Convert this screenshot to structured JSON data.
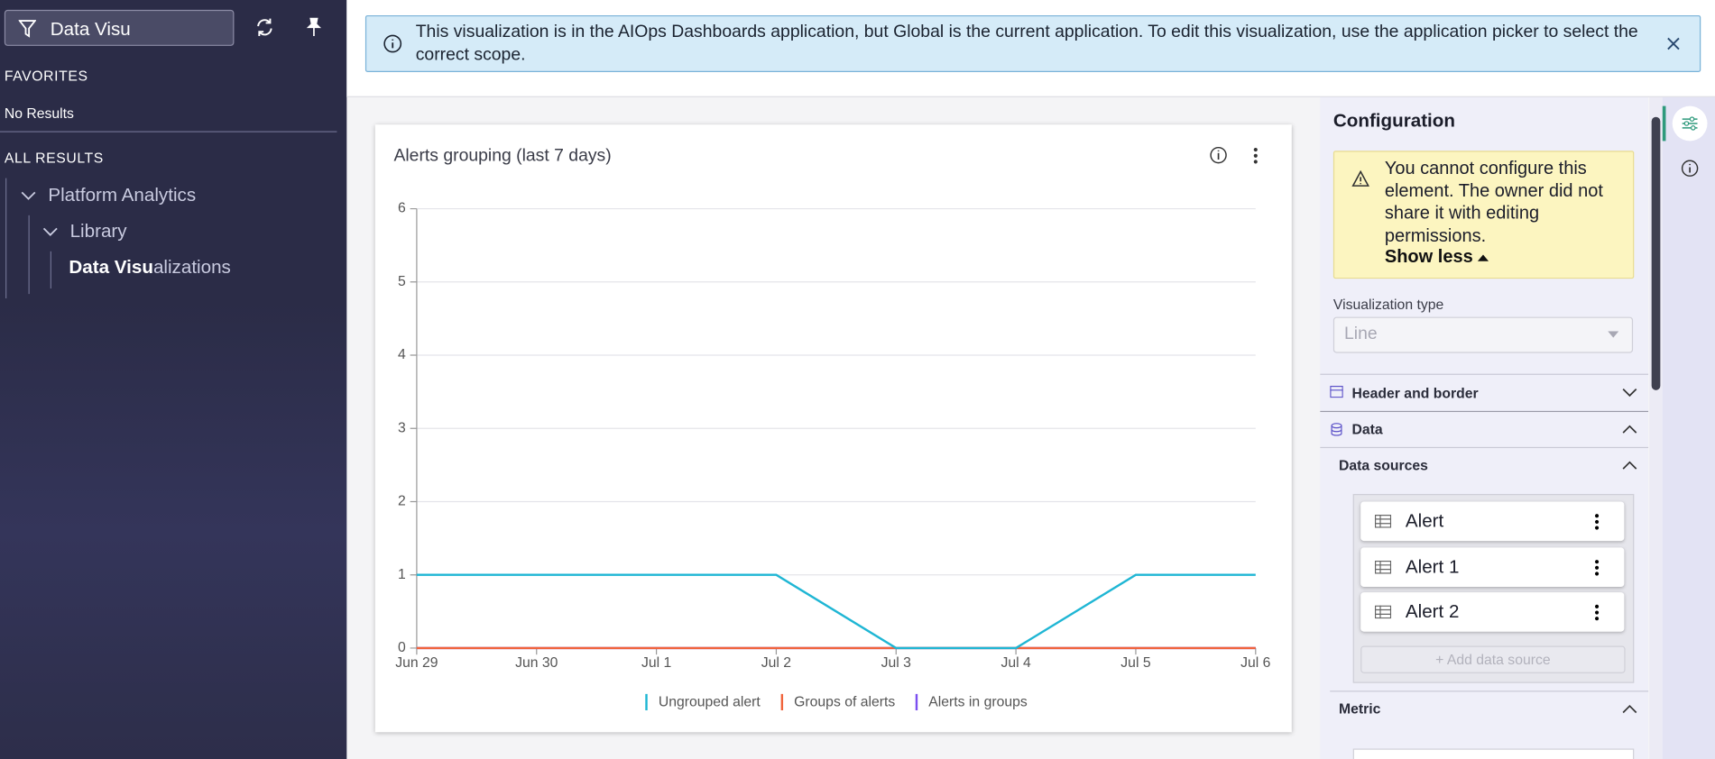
{
  "sidebar": {
    "search": "Data Visu",
    "favorites_heading": "FAVORITES",
    "favorites_empty": "No Results",
    "all_results_heading": "ALL RESULTS",
    "tree": [
      {
        "label": "Platform Analytics"
      },
      {
        "label": "Library"
      },
      {
        "label_match": "Data Visu",
        "label_rest": "alizations"
      }
    ]
  },
  "banner": {
    "text": "This visualization is in the AIOps Dashboards application, but Global is the current application. To edit this visualization, use the application picker to select the correct scope."
  },
  "chart_data": {
    "type": "line",
    "title": "Alerts grouping (last 7 days)",
    "categories": [
      "Jun 29",
      "Jun 30",
      "Jul 1",
      "Jul 2",
      "Jul 3",
      "Jul 4",
      "Jul 5",
      "Jul 6"
    ],
    "series": [
      {
        "name": "Ungrouped alert",
        "color": "#1fb6d4",
        "values": [
          1,
          1,
          1,
          1,
          0,
          0,
          1,
          1
        ]
      },
      {
        "name": "Groups of alerts",
        "color": "#f0643c",
        "values": [
          0,
          0,
          0,
          0,
          0,
          0,
          0,
          0
        ]
      },
      {
        "name": "Alerts in groups",
        "color": "#7b4ff0",
        "values": [
          0,
          0,
          0,
          0,
          0,
          0,
          0,
          0
        ]
      }
    ],
    "ylim": [
      0,
      6
    ],
    "yticks": [
      0,
      1,
      2,
      3,
      4,
      5,
      6
    ],
    "grid": true
  },
  "config": {
    "title": "Configuration",
    "warning": "You cannot configure this element. The owner did not share it with editing permissions.",
    "show_less": "Show less",
    "viz_type_label": "Visualization type",
    "viz_type_value": "Line",
    "sections": [
      "Header and border",
      "Data"
    ],
    "data_sources_label": "Data sources",
    "data_sources": [
      "Alert",
      "Alert 1",
      "Alert 2"
    ],
    "add_data_source": "+ Add data source",
    "metric_label": "Metric"
  }
}
